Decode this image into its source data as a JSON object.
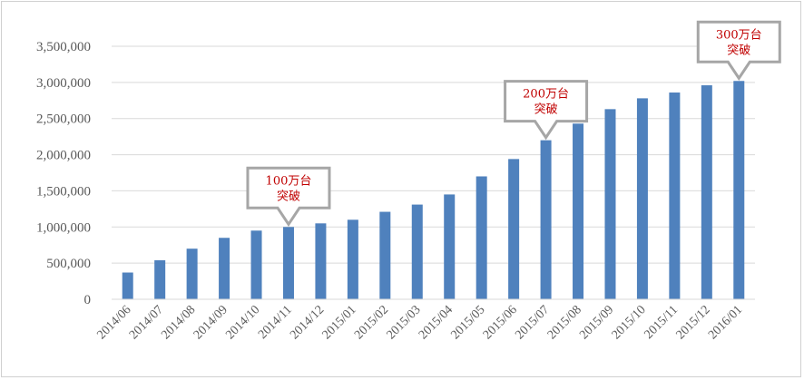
{
  "chart_data": {
    "type": "bar",
    "categories": [
      "2014/06",
      "2014/07",
      "2014/08",
      "2014/09",
      "2014/10",
      "2014/11",
      "2014/12",
      "2015/01",
      "2015/02",
      "2015/03",
      "2015/04",
      "2015/05",
      "2015/06",
      "2015/07",
      "2015/08",
      "2015/09",
      "2015/10",
      "2015/11",
      "2015/12",
      "2016/01"
    ],
    "values": [
      370000,
      540000,
      700000,
      850000,
      950000,
      1000000,
      1050000,
      1100000,
      1210000,
      1310000,
      1450000,
      1700000,
      1940000,
      2200000,
      2430000,
      2630000,
      2780000,
      2860000,
      2960000,
      3020000
    ],
    "ylim": [
      0,
      3500000
    ],
    "yticks": [
      0,
      500000,
      1000000,
      1500000,
      2000000,
      2500000,
      3000000,
      3500000
    ],
    "ytick_labels": [
      "0",
      "500,000",
      "1,000,000",
      "1,500,000",
      "2,000,000",
      "2,500,000",
      "3,000,000",
      "3,500,000"
    ],
    "grid": true,
    "bar_color": "#4f81bd",
    "annotations": [
      {
        "category_index": 5,
        "line1": "100万台",
        "line2": "突破"
      },
      {
        "category_index": 13,
        "line1": "200万台",
        "line2": "突破"
      },
      {
        "category_index": 19,
        "line1": "300万台",
        "line2": "突破"
      }
    ],
    "annotation_text_color": "#c00000",
    "annotation_border_color": "#a6a6a6"
  }
}
